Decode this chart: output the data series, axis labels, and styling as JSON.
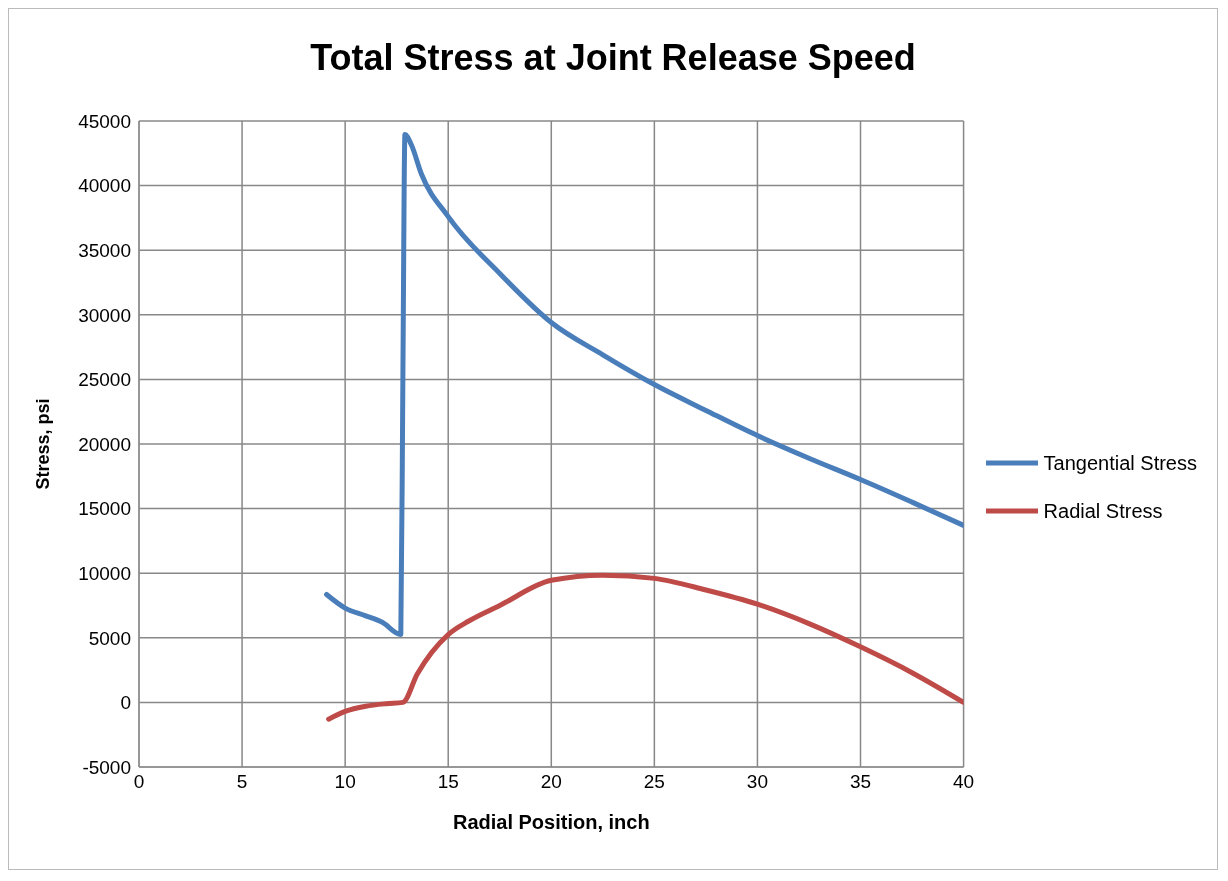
{
  "chart_data": {
    "type": "line",
    "title": "Total Stress at Joint Release Speed",
    "xlabel": "Radial Position, inch",
    "ylabel": "Stress, psi",
    "xlim": [
      0,
      40
    ],
    "xticks": [
      0,
      5,
      10,
      15,
      20,
      25,
      30,
      35,
      40
    ],
    "ylim": [
      -5000,
      45000
    ],
    "yticks": [
      -5000,
      0,
      5000,
      10000,
      15000,
      20000,
      25000,
      30000,
      35000,
      40000,
      45000
    ],
    "grid": true,
    "legend": "right",
    "marker": "none",
    "line_style": "solid",
    "series": [
      {
        "name": "Tangential Stress",
        "color": "#4a7ebb",
        "x": [
          9.1,
          10,
          11,
          11.8,
          12.7,
          12.8,
          12.9,
          13.2,
          13.7,
          15,
          17.5,
          20,
          22.5,
          25,
          27.5,
          30,
          32.5,
          35,
          37.5,
          40
        ],
        "values": [
          8350,
          7300,
          6700,
          6200,
          5250,
          25000,
          43950,
          43200,
          40900,
          37600,
          33200,
          29400,
          26900,
          24600,
          22600,
          20650,
          18900,
          17250,
          15500,
          13700
        ]
      },
      {
        "name": "Radial Stress",
        "color": "#be4b48",
        "x": [
          9.2,
          10,
          11,
          12,
          12.8,
          13.5,
          15,
          16,
          17.5,
          20,
          22.5,
          25,
          27.5,
          30,
          32.5,
          35,
          37.5,
          40
        ],
        "values": [
          -1300,
          -700,
          -300,
          -100,
          0,
          2200,
          5250,
          6300,
          7500,
          9450,
          9850,
          9600,
          8700,
          7600,
          6100,
          4300,
          2300,
          0
        ]
      }
    ]
  }
}
